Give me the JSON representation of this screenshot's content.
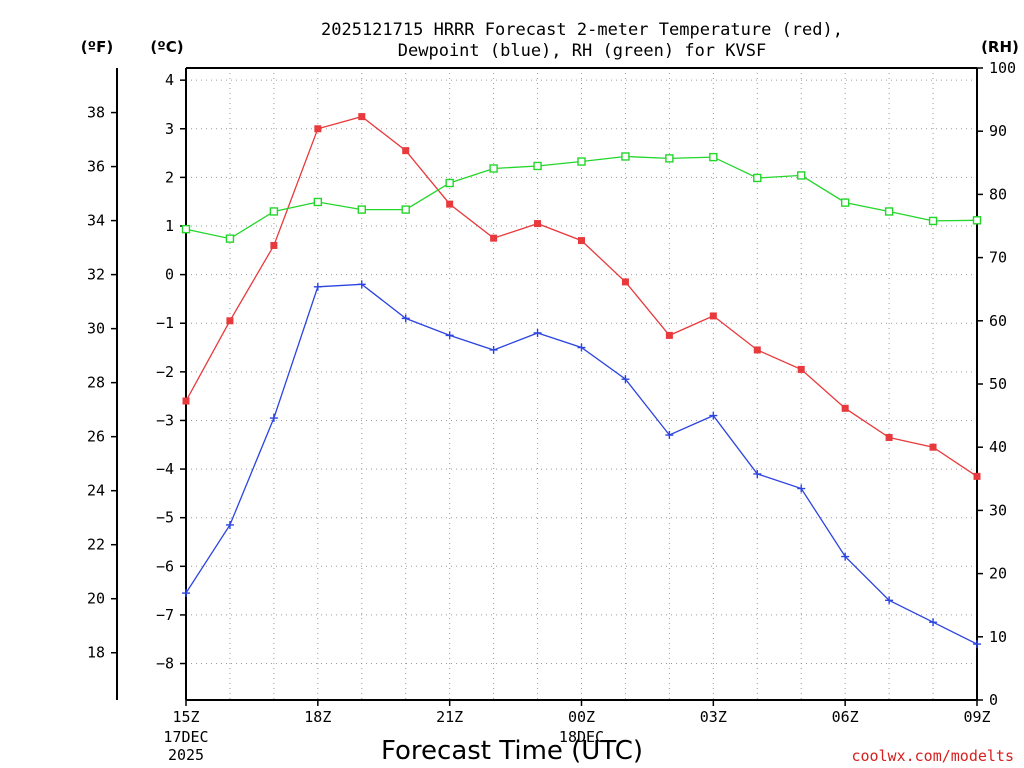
{
  "chart_data": {
    "type": "line",
    "title_lines": [
      "2025121715 HRRR Forecast 2-meter Temperature (red),",
      "Dewpoint (blue), RH (green) for KVSF"
    ],
    "xlabel": "Forecast Time (UTC)",
    "credit": "coolwx.com/modelts",
    "units": {
      "fahrenheit": "(ºF)",
      "celsius": "(ºC)",
      "rh": "(RH)"
    },
    "x_hours": [
      0,
      1,
      2,
      3,
      4,
      5,
      6,
      7,
      8,
      9,
      10,
      11,
      12,
      13,
      14,
      15,
      16,
      17,
      18
    ],
    "x_ticks": [
      {
        "hour": 0,
        "label": "15Z",
        "sub": [
          "17DEC",
          "2025"
        ]
      },
      {
        "hour": 3,
        "label": "18Z",
        "sub": []
      },
      {
        "hour": 6,
        "label": "21Z",
        "sub": []
      },
      {
        "hour": 9,
        "label": "00Z",
        "sub": [
          "18DEC"
        ]
      },
      {
        "hour": 12,
        "label": "03Z",
        "sub": []
      },
      {
        "hour": 15,
        "label": "06Z",
        "sub": []
      },
      {
        "hour": 18,
        "label": "09Z",
        "sub": []
      }
    ],
    "ylim_celsius": [
      -8.75,
      4.25
    ],
    "ylim_rh": [
      0,
      100
    ],
    "celsius_ticks": [
      -8,
      -7,
      -6,
      -5,
      -4,
      -3,
      -2,
      -1,
      0,
      1,
      2,
      3,
      4
    ],
    "fahrenheit_ticks": [
      18,
      20,
      22,
      24,
      26,
      28,
      30,
      32,
      34,
      36,
      38
    ],
    "rh_ticks": [
      0,
      10,
      20,
      30,
      40,
      50,
      60,
      70,
      80,
      90,
      100
    ],
    "grid": true,
    "series": [
      {
        "name": "Temperature",
        "unit": "C",
        "axis": "celsius",
        "color": "#e8393c",
        "marker": "filled-square",
        "values": [
          -2.6,
          -0.95,
          0.6,
          3.0,
          3.25,
          2.55,
          1.45,
          0.75,
          1.05,
          0.7,
          -0.15,
          -1.25,
          -0.85,
          -1.55,
          -1.95,
          -2.75,
          -3.35,
          -3.55,
          -4.15
        ]
      },
      {
        "name": "Dewpoint",
        "unit": "C",
        "axis": "celsius",
        "color": "#2c44e0",
        "marker": "plus",
        "values": [
          -6.55,
          -5.15,
          -2.95,
          -0.25,
          -0.2,
          -0.9,
          -1.25,
          -1.55,
          -1.2,
          -1.5,
          -2.15,
          -3.3,
          -2.9,
          -4.1,
          -4.4,
          -5.8,
          -6.7,
          -7.15,
          -7.6
        ]
      },
      {
        "name": "RH",
        "unit": "%",
        "axis": "rh",
        "color": "#23d62a",
        "marker": "open-square",
        "values": [
          74.5,
          73.0,
          77.3,
          78.8,
          77.6,
          77.6,
          81.8,
          84.1,
          84.5,
          85.2,
          86.0,
          85.7,
          85.9,
          82.6,
          83.0,
          78.7,
          77.3,
          75.8,
          75.9
        ]
      }
    ]
  }
}
